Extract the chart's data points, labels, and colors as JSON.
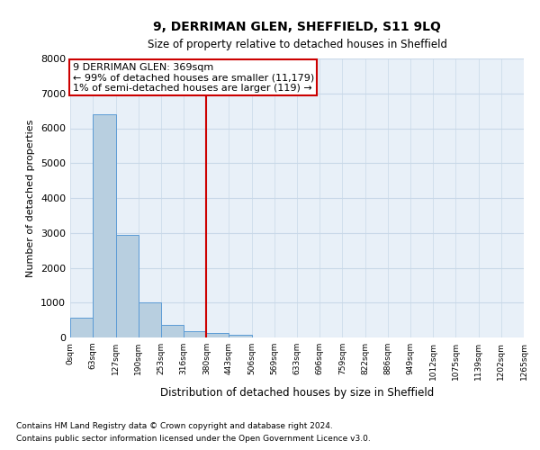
{
  "title": "9, DERRIMAN GLEN, SHEFFIELD, S11 9LQ",
  "subtitle": "Size of property relative to detached houses in Sheffield",
  "xlabel": "Distribution of detached houses by size in Sheffield",
  "ylabel": "Number of detached properties",
  "footnote1": "Contains HM Land Registry data © Crown copyright and database right 2024.",
  "footnote2": "Contains public sector information licensed under the Open Government Licence v3.0.",
  "annotation_line1": "9 DERRIMAN GLEN: 369sqm",
  "annotation_line2": "← 99% of detached houses are smaller (11,179)",
  "annotation_line3": "1% of semi-detached houses are larger (119) →",
  "red_line_x": 380,
  "bar_edges": [
    0,
    63,
    127,
    190,
    253,
    316,
    380,
    443,
    506,
    569,
    633,
    696,
    759,
    822,
    886,
    949,
    1012,
    1075,
    1139,
    1202,
    1265
  ],
  "bar_values": [
    560,
    6400,
    2930,
    1000,
    360,
    175,
    120,
    90,
    0,
    0,
    0,
    0,
    0,
    0,
    0,
    0,
    0,
    0,
    0,
    0
  ],
  "bar_color": "#b8cfe0",
  "bar_edge_color": "#5b9bd5",
  "red_line_color": "#cc0000",
  "grid_color": "#c8d8e8",
  "bg_color": "#e8f0f8",
  "ylim": [
    0,
    8000
  ],
  "yticks": [
    0,
    1000,
    2000,
    3000,
    4000,
    5000,
    6000,
    7000,
    8000
  ],
  "title_fontsize": 10,
  "subtitle_fontsize": 8.5,
  "ylabel_fontsize": 8,
  "xlabel_fontsize": 8.5,
  "xtick_fontsize": 6.5,
  "ytick_fontsize": 8,
  "annotation_fontsize": 8,
  "footnote_fontsize": 6.5
}
